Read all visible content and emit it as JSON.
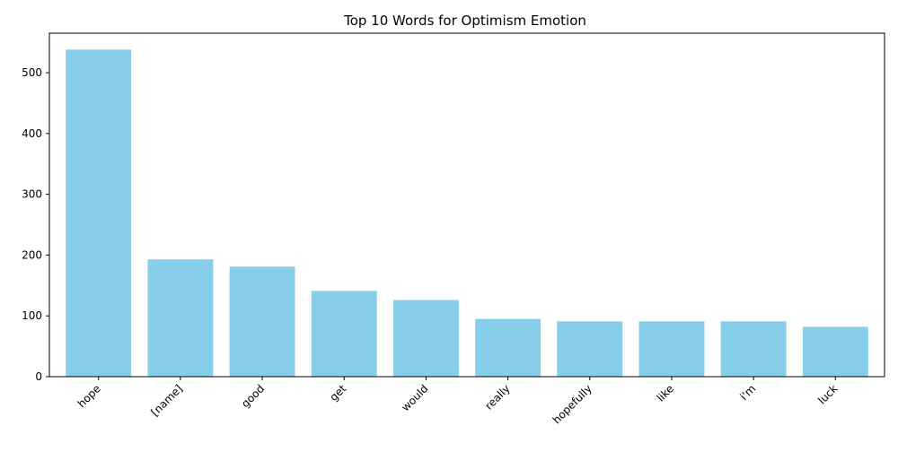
{
  "chart_data": {
    "type": "bar",
    "title": "Top 10 Words for Optimism Emotion",
    "xlabel": "",
    "ylabel": "",
    "categories": [
      "hope",
      "[name]",
      "good",
      "get",
      "would",
      "really",
      "hopefully",
      "like",
      "i'm",
      "luck"
    ],
    "values": [
      538,
      193,
      181,
      141,
      126,
      95,
      91,
      91,
      91,
      82
    ],
    "ylim": [
      0,
      565
    ],
    "yticks": [
      0,
      100,
      200,
      300,
      400,
      500
    ],
    "bar_color": "#87ceeb",
    "grid": false,
    "xtick_rotation": 45
  }
}
